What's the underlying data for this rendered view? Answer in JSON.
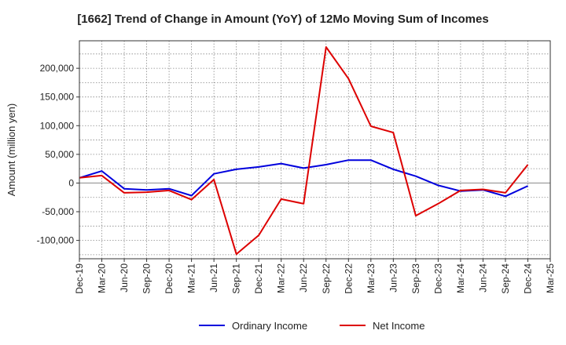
{
  "chart_data": {
    "type": "line",
    "title": "[1662]  Trend of Change in Amount (YoY) of 12Mo Moving Sum of Incomes",
    "ylabel": "Amount (million yen)",
    "xlabel": "",
    "x_tick_labels": [
      "Dec-19",
      "Mar-20",
      "Jun-20",
      "Sep-20",
      "Dec-20",
      "Mar-21",
      "Jun-21",
      "Sep-21",
      "Dec-21",
      "Mar-22",
      "Jun-22",
      "Sep-22",
      "Dec-22",
      "Mar-23",
      "Jun-23",
      "Sep-23",
      "Dec-23",
      "Mar-24",
      "Jun-24",
      "Sep-24",
      "Dec-24",
      "Mar-25"
    ],
    "y_ticks": [
      -100000,
      -50000,
      0,
      50000,
      100000,
      150000,
      200000
    ],
    "y_tick_labels": [
      "-100,000",
      "-50,000",
      "0",
      "50,000",
      "100,000",
      "150,000",
      "200,000"
    ],
    "ylim": [
      -132000,
      248000
    ],
    "grid": true,
    "legend_position": "bottom-center",
    "series": [
      {
        "name": "Ordinary Income",
        "color": "#0000dd",
        "x": [
          "Dec-19",
          "Mar-20",
          "Jun-20",
          "Sep-20",
          "Dec-20",
          "Mar-21",
          "Jun-21",
          "Sep-21",
          "Dec-21",
          "Mar-22",
          "Jun-22",
          "Sep-22",
          "Dec-22",
          "Mar-23",
          "Jun-23",
          "Sep-23",
          "Dec-23",
          "Mar-24",
          "Jun-24",
          "Sep-24",
          "Dec-24"
        ],
        "values": [
          9000,
          21000,
          -10000,
          -12000,
          -10000,
          -22000,
          16000,
          24000,
          28000,
          34000,
          26000,
          32000,
          40000,
          40000,
          24000,
          12000,
          -4000,
          -14000,
          -12000,
          -23000,
          -5000
        ]
      },
      {
        "name": "Net Income",
        "color": "#dd0000",
        "x": [
          "Dec-19",
          "Mar-20",
          "Jun-20",
          "Sep-20",
          "Dec-20",
          "Mar-21",
          "Jun-21",
          "Sep-21",
          "Dec-21",
          "Mar-22",
          "Jun-22",
          "Sep-22",
          "Dec-22",
          "Mar-23",
          "Jun-23",
          "Sep-23",
          "Dec-23",
          "Mar-24",
          "Jun-24",
          "Sep-24",
          "Dec-24"
        ],
        "values": [
          9000,
          13000,
          -17000,
          -16000,
          -13000,
          -29000,
          6000,
          -124000,
          -91000,
          -28000,
          -36000,
          237000,
          182000,
          99000,
          88000,
          -57000,
          -36000,
          -13000,
          -11000,
          -17000,
          32000
        ]
      }
    ],
    "colors": {
      "grid": "#888888",
      "zero_line": "#888888",
      "frame": "#333333"
    }
  }
}
